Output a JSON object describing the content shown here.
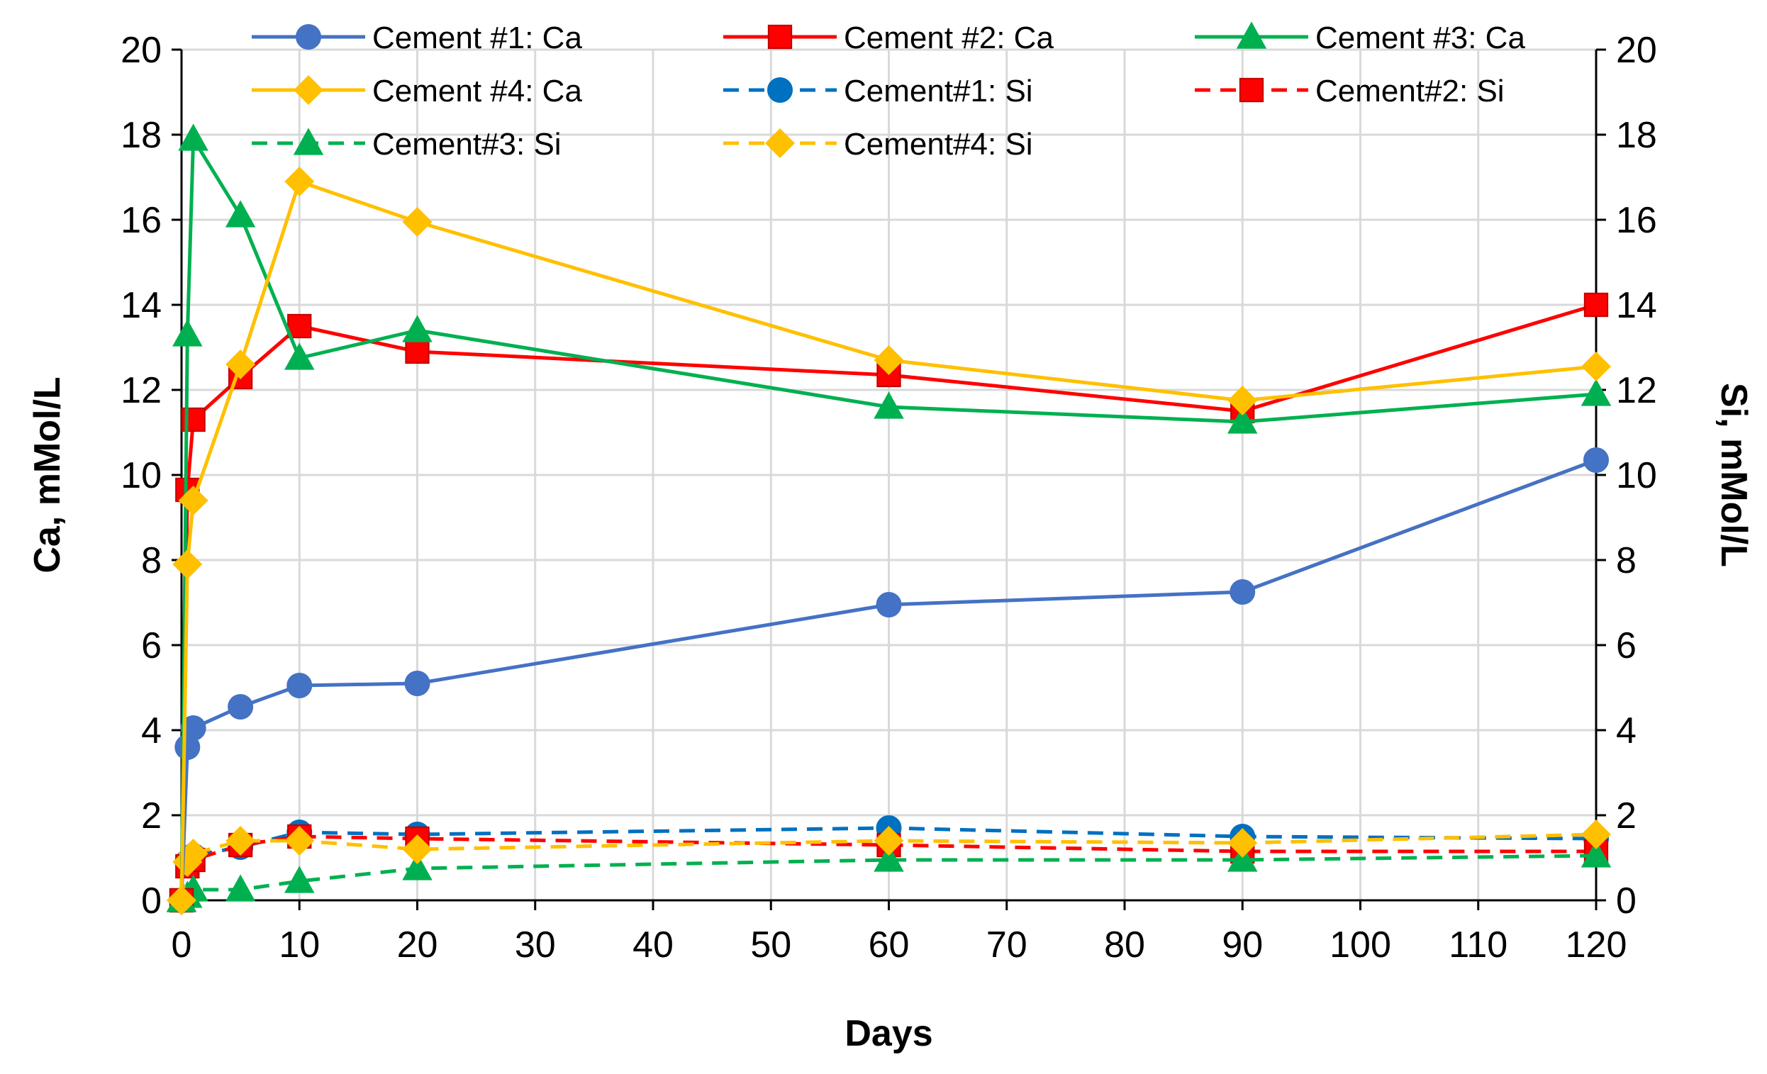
{
  "chart_data": {
    "type": "line",
    "xlabel": "Days",
    "ylabel": "Ca, mMol/L",
    "y2label": "Si, mMol/L",
    "xlim": [
      0,
      120
    ],
    "ylim": [
      0,
      20
    ],
    "y2lim": [
      0,
      20
    ],
    "xticks": [
      "0",
      "10",
      "20",
      "30",
      "40",
      "50",
      "60",
      "70",
      "80",
      "90",
      "100",
      "110",
      "120"
    ],
    "yticks": [
      "0",
      "2",
      "4",
      "6",
      "8",
      "10",
      "12",
      "14",
      "16",
      "18",
      "20"
    ],
    "grid": true,
    "legend_position": "top",
    "series": [
      {
        "name": "Cement #1: Ca",
        "color": "#4472C4",
        "marker": "circle",
        "dash": "solid",
        "x": [
          0,
          0.5,
          1,
          5,
          10,
          20,
          60,
          90,
          120
        ],
        "y": [
          0,
          3.6,
          4.05,
          4.55,
          5.05,
          5.1,
          6.95,
          7.25,
          10.35
        ]
      },
      {
        "name": "Cement #2: Ca",
        "color": "#FF0000",
        "marker": "square",
        "dash": "solid",
        "x": [
          0,
          0.5,
          1,
          5,
          10,
          20,
          60,
          90,
          120
        ],
        "y": [
          0,
          9.65,
          11.3,
          12.3,
          13.5,
          12.9,
          12.35,
          11.5,
          14.0
        ]
      },
      {
        "name": "Cement #3: Ca",
        "color": "#00B050",
        "marker": "triangle",
        "dash": "solid",
        "x": [
          0,
          0.5,
          1,
          5,
          10,
          20,
          60,
          90,
          120
        ],
        "y": [
          0,
          13.3,
          17.9,
          16.1,
          12.75,
          13.4,
          11.6,
          11.25,
          11.9
        ]
      },
      {
        "name": "Cement #4: Ca",
        "color": "#FFC000",
        "marker": "diamond",
        "dash": "solid",
        "x": [
          0,
          0.5,
          1,
          5,
          10,
          20,
          60,
          90,
          120
        ],
        "y": [
          0,
          7.9,
          9.4,
          12.6,
          16.9,
          15.95,
          12.7,
          11.75,
          12.55
        ]
      },
      {
        "name": "Cement#1: Si",
        "color": "#0070C0",
        "marker": "circle",
        "dash": "dashed",
        "x": [
          0,
          0.5,
          1,
          5,
          10,
          20,
          60,
          90,
          120
        ],
        "y": [
          0,
          0.9,
          1.05,
          1.25,
          1.6,
          1.55,
          1.7,
          1.5,
          1.45
        ]
      },
      {
        "name": "Cement#2: Si",
        "color": "#FF0000",
        "marker": "square",
        "dash": "dashed",
        "x": [
          0,
          0.5,
          1,
          5,
          10,
          20,
          60,
          90,
          120
        ],
        "y": [
          0,
          0.8,
          0.95,
          1.3,
          1.5,
          1.45,
          1.3,
          1.15,
          1.15
        ]
      },
      {
        "name": "Cement#3: Si",
        "color": "#00B050",
        "marker": "triangle",
        "dash": "dashed",
        "x": [
          0,
          0.5,
          1,
          5,
          10,
          20,
          60,
          90,
          120
        ],
        "y": [
          0,
          0.1,
          0.25,
          0.25,
          0.45,
          0.75,
          0.95,
          0.95,
          1.05
        ]
      },
      {
        "name": "Cement#4: Si",
        "color": "#FFC000",
        "marker": "diamond",
        "dash": "dashed",
        "x": [
          0,
          0.5,
          1,
          5,
          10,
          20,
          60,
          90,
          120
        ],
        "y": [
          0,
          0.9,
          1.1,
          1.4,
          1.4,
          1.2,
          1.4,
          1.35,
          1.55
        ]
      }
    ]
  }
}
